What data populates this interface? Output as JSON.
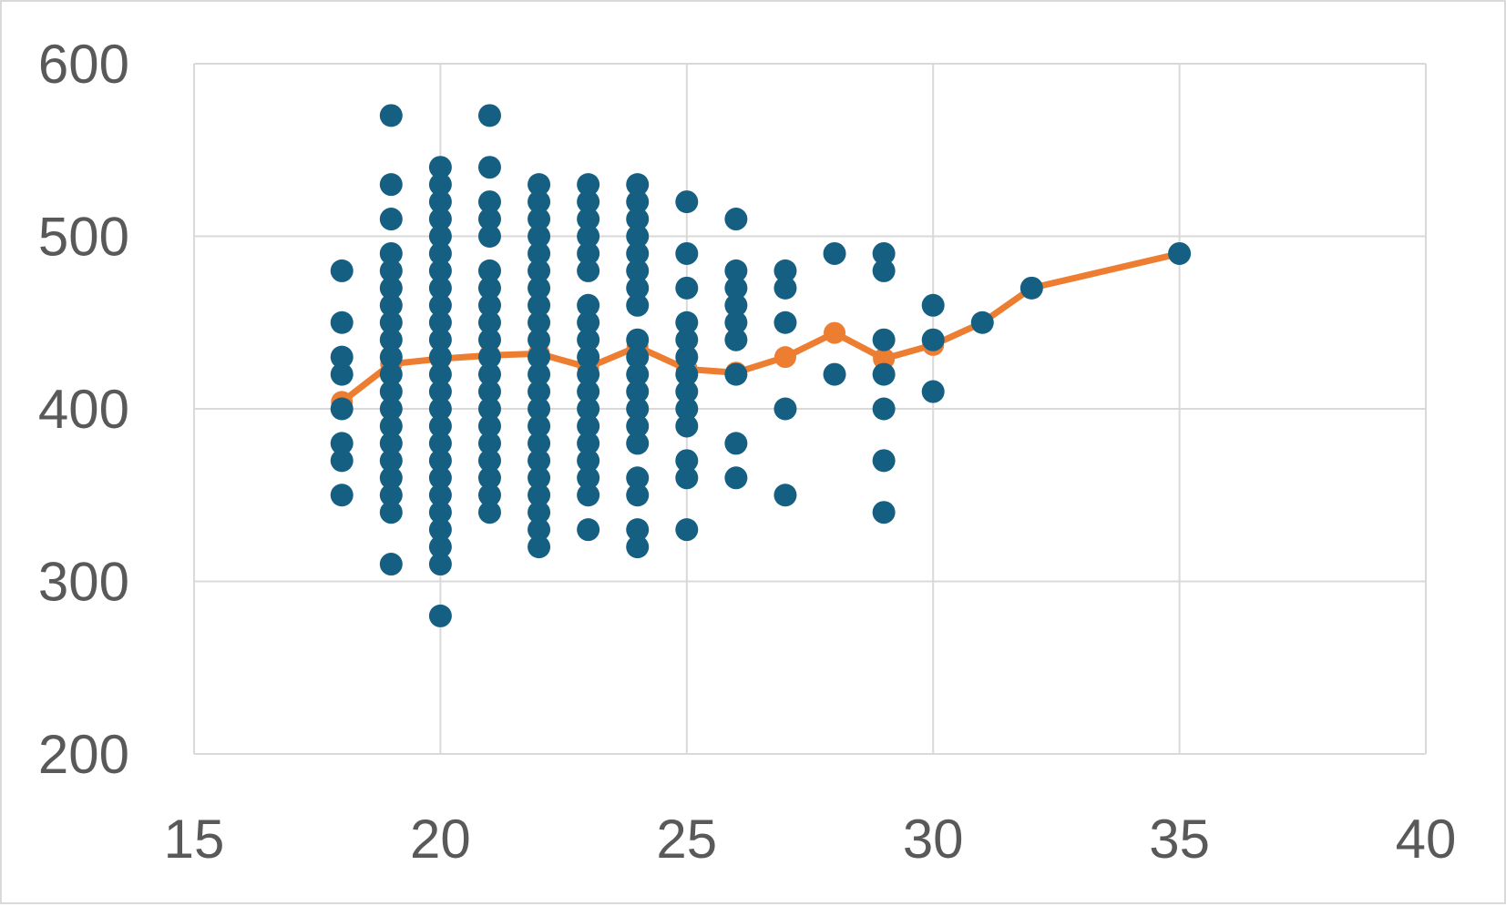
{
  "chart_data": {
    "type": "scatter",
    "title": "",
    "xlabel": "",
    "ylabel": "",
    "xlim": [
      15,
      40
    ],
    "ylim": [
      200,
      600
    ],
    "x_ticks": [
      15,
      20,
      25,
      30,
      35,
      40
    ],
    "y_ticks": [
      200,
      300,
      400,
      500,
      600
    ],
    "x_tick_labels": [
      "15",
      "20",
      "25",
      "30",
      "35",
      "40"
    ],
    "y_tick_labels": [
      "200",
      "300",
      "400",
      "500",
      "600"
    ],
    "grid": true,
    "legend": "none",
    "series": [
      {
        "kind": "scatter",
        "color": "#156082",
        "points": [
          [
            18,
            480
          ],
          [
            18,
            450
          ],
          [
            18,
            430
          ],
          [
            18,
            420
          ],
          [
            18,
            400
          ],
          [
            18,
            380
          ],
          [
            18,
            370
          ],
          [
            18,
            350
          ],
          [
            19,
            570
          ],
          [
            19,
            530
          ],
          [
            19,
            510
          ],
          [
            19,
            490
          ],
          [
            19,
            480
          ],
          [
            19,
            470
          ],
          [
            19,
            460
          ],
          [
            19,
            450
          ],
          [
            19,
            440
          ],
          [
            19,
            430
          ],
          [
            19,
            420
          ],
          [
            19,
            410
          ],
          [
            19,
            400
          ],
          [
            19,
            390
          ],
          [
            19,
            380
          ],
          [
            19,
            370
          ],
          [
            19,
            360
          ],
          [
            19,
            350
          ],
          [
            19,
            340
          ],
          [
            19,
            310
          ],
          [
            20,
            540
          ],
          [
            20,
            530
          ],
          [
            20,
            520
          ],
          [
            20,
            510
          ],
          [
            20,
            500
          ],
          [
            20,
            490
          ],
          [
            20,
            480
          ],
          [
            20,
            470
          ],
          [
            20,
            460
          ],
          [
            20,
            450
          ],
          [
            20,
            440
          ],
          [
            20,
            430
          ],
          [
            20,
            420
          ],
          [
            20,
            410
          ],
          [
            20,
            400
          ],
          [
            20,
            390
          ],
          [
            20,
            380
          ],
          [
            20,
            370
          ],
          [
            20,
            360
          ],
          [
            20,
            350
          ],
          [
            20,
            340
          ],
          [
            20,
            330
          ],
          [
            20,
            320
          ],
          [
            20,
            310
          ],
          [
            20,
            280
          ],
          [
            21,
            570
          ],
          [
            21,
            540
          ],
          [
            21,
            520
          ],
          [
            21,
            510
          ],
          [
            21,
            500
          ],
          [
            21,
            480
          ],
          [
            21,
            470
          ],
          [
            21,
            460
          ],
          [
            21,
            450
          ],
          [
            21,
            440
          ],
          [
            21,
            430
          ],
          [
            21,
            420
          ],
          [
            21,
            410
          ],
          [
            21,
            400
          ],
          [
            21,
            390
          ],
          [
            21,
            380
          ],
          [
            21,
            370
          ],
          [
            21,
            360
          ],
          [
            21,
            350
          ],
          [
            21,
            340
          ],
          [
            22,
            530
          ],
          [
            22,
            520
          ],
          [
            22,
            510
          ],
          [
            22,
            500
          ],
          [
            22,
            490
          ],
          [
            22,
            480
          ],
          [
            22,
            470
          ],
          [
            22,
            460
          ],
          [
            22,
            450
          ],
          [
            22,
            440
          ],
          [
            22,
            430
          ],
          [
            22,
            420
          ],
          [
            22,
            410
          ],
          [
            22,
            400
          ],
          [
            22,
            390
          ],
          [
            22,
            380
          ],
          [
            22,
            370
          ],
          [
            22,
            360
          ],
          [
            22,
            350
          ],
          [
            22,
            340
          ],
          [
            22,
            330
          ],
          [
            22,
            320
          ],
          [
            23,
            530
          ],
          [
            23,
            520
          ],
          [
            23,
            510
          ],
          [
            23,
            500
          ],
          [
            23,
            490
          ],
          [
            23,
            480
          ],
          [
            23,
            460
          ],
          [
            23,
            450
          ],
          [
            23,
            440
          ],
          [
            23,
            430
          ],
          [
            23,
            420
          ],
          [
            23,
            410
          ],
          [
            23,
            400
          ],
          [
            23,
            390
          ],
          [
            23,
            380
          ],
          [
            23,
            370
          ],
          [
            23,
            360
          ],
          [
            23,
            350
          ],
          [
            23,
            330
          ],
          [
            24,
            530
          ],
          [
            24,
            520
          ],
          [
            24,
            510
          ],
          [
            24,
            500
          ],
          [
            24,
            490
          ],
          [
            24,
            480
          ],
          [
            24,
            470
          ],
          [
            24,
            460
          ],
          [
            24,
            440
          ],
          [
            24,
            430
          ],
          [
            24,
            420
          ],
          [
            24,
            410
          ],
          [
            24,
            400
          ],
          [
            24,
            390
          ],
          [
            24,
            380
          ],
          [
            24,
            360
          ],
          [
            24,
            350
          ],
          [
            24,
            330
          ],
          [
            24,
            320
          ],
          [
            25,
            520
          ],
          [
            25,
            490
          ],
          [
            25,
            470
          ],
          [
            25,
            450
          ],
          [
            25,
            440
          ],
          [
            25,
            430
          ],
          [
            25,
            420
          ],
          [
            25,
            410
          ],
          [
            25,
            400
          ],
          [
            25,
            390
          ],
          [
            25,
            370
          ],
          [
            25,
            360
          ],
          [
            25,
            330
          ],
          [
            26,
            510
          ],
          [
            26,
            480
          ],
          [
            26,
            470
          ],
          [
            26,
            460
          ],
          [
            26,
            450
          ],
          [
            26,
            440
          ],
          [
            26,
            420
          ],
          [
            26,
            380
          ],
          [
            26,
            360
          ],
          [
            27,
            480
          ],
          [
            27,
            470
          ],
          [
            27,
            450
          ],
          [
            27,
            400
          ],
          [
            27,
            350
          ],
          [
            28,
            490
          ],
          [
            28,
            420
          ],
          [
            29,
            490
          ],
          [
            29,
            480
          ],
          [
            29,
            440
          ],
          [
            29,
            420
          ],
          [
            29,
            400
          ],
          [
            29,
            370
          ],
          [
            29,
            340
          ],
          [
            30,
            460
          ],
          [
            30,
            440
          ],
          [
            30,
            410
          ],
          [
            31,
            450
          ],
          [
            32,
            470
          ],
          [
            35,
            490
          ]
        ]
      },
      {
        "kind": "line",
        "color": "#ed7d31",
        "points": [
          [
            18,
            404
          ],
          [
            19,
            426
          ],
          [
            20,
            429
          ],
          [
            21,
            431
          ],
          [
            22,
            432
          ],
          [
            23,
            424
          ],
          [
            24,
            436
          ],
          [
            25,
            423
          ],
          [
            26,
            421
          ],
          [
            27,
            430
          ],
          [
            28,
            444
          ],
          [
            29,
            429
          ],
          [
            30,
            437
          ],
          [
            31,
            450
          ],
          [
            32,
            470
          ],
          [
            35,
            490
          ]
        ]
      }
    ]
  }
}
